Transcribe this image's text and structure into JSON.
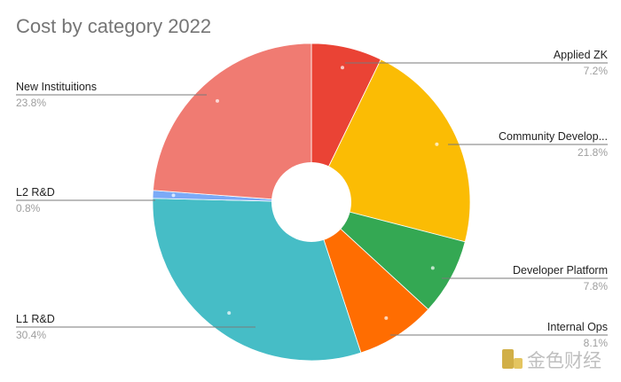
{
  "chart_data": {
    "type": "pie",
    "title": "Cost by category 2022",
    "donut": true,
    "slices": [
      {
        "label": "Applied ZK",
        "percent_label": "7.2%",
        "value": 7.2,
        "color": "#ea4335"
      },
      {
        "label": "Community Develop...",
        "percent_label": "21.8%",
        "value": 21.8,
        "color": "#fbbc04"
      },
      {
        "label": "Developer Platform",
        "percent_label": "7.8%",
        "value": 7.8,
        "color": "#34a853"
      },
      {
        "label": "Internal Ops",
        "percent_label": "8.1%",
        "value": 8.1,
        "color": "#ff6d01"
      },
      {
        "label": "L1 R&D",
        "percent_label": "30.4%",
        "value": 30.4,
        "color": "#46bdc6"
      },
      {
        "label": "L2 R&D",
        "percent_label": "0.8%",
        "value": 0.8,
        "color": "#7baaf7"
      },
      {
        "label": "New Instituitions",
        "percent_label": "23.8%",
        "value": 23.8,
        "color": "#f07b72"
      }
    ]
  },
  "watermark": {
    "text": "金色财经",
    "icon": "jinse-logo-icon",
    "color": "#c9a227"
  }
}
